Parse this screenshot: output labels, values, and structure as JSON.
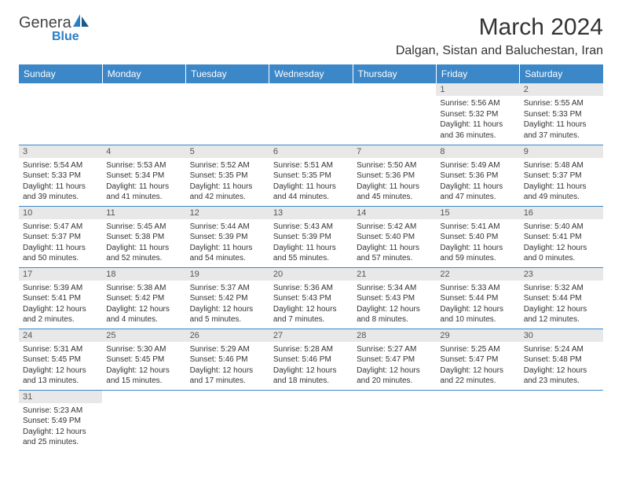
{
  "logo": {
    "text1": "Genera",
    "text2": "Blue"
  },
  "title": "March 2024",
  "location": "Dalgan, Sistan and Baluchestan, Iran",
  "colors": {
    "header_bg": "#3b87c8",
    "header_text": "#ffffff",
    "daynum_bg": "#e8e8e8",
    "row_border": "#3b87c8"
  },
  "weekdays": [
    "Sunday",
    "Monday",
    "Tuesday",
    "Wednesday",
    "Thursday",
    "Friday",
    "Saturday"
  ],
  "weeks": [
    [
      {
        "empty": true
      },
      {
        "empty": true
      },
      {
        "empty": true
      },
      {
        "empty": true
      },
      {
        "empty": true
      },
      {
        "n": "1",
        "sr": "Sunrise: 5:56 AM",
        "ss": "Sunset: 5:32 PM",
        "dl": "Daylight: 11 hours and 36 minutes."
      },
      {
        "n": "2",
        "sr": "Sunrise: 5:55 AM",
        "ss": "Sunset: 5:33 PM",
        "dl": "Daylight: 11 hours and 37 minutes."
      }
    ],
    [
      {
        "n": "3",
        "sr": "Sunrise: 5:54 AM",
        "ss": "Sunset: 5:33 PM",
        "dl": "Daylight: 11 hours and 39 minutes."
      },
      {
        "n": "4",
        "sr": "Sunrise: 5:53 AM",
        "ss": "Sunset: 5:34 PM",
        "dl": "Daylight: 11 hours and 41 minutes."
      },
      {
        "n": "5",
        "sr": "Sunrise: 5:52 AM",
        "ss": "Sunset: 5:35 PM",
        "dl": "Daylight: 11 hours and 42 minutes."
      },
      {
        "n": "6",
        "sr": "Sunrise: 5:51 AM",
        "ss": "Sunset: 5:35 PM",
        "dl": "Daylight: 11 hours and 44 minutes."
      },
      {
        "n": "7",
        "sr": "Sunrise: 5:50 AM",
        "ss": "Sunset: 5:36 PM",
        "dl": "Daylight: 11 hours and 45 minutes."
      },
      {
        "n": "8",
        "sr": "Sunrise: 5:49 AM",
        "ss": "Sunset: 5:36 PM",
        "dl": "Daylight: 11 hours and 47 minutes."
      },
      {
        "n": "9",
        "sr": "Sunrise: 5:48 AM",
        "ss": "Sunset: 5:37 PM",
        "dl": "Daylight: 11 hours and 49 minutes."
      }
    ],
    [
      {
        "n": "10",
        "sr": "Sunrise: 5:47 AM",
        "ss": "Sunset: 5:37 PM",
        "dl": "Daylight: 11 hours and 50 minutes."
      },
      {
        "n": "11",
        "sr": "Sunrise: 5:45 AM",
        "ss": "Sunset: 5:38 PM",
        "dl": "Daylight: 11 hours and 52 minutes."
      },
      {
        "n": "12",
        "sr": "Sunrise: 5:44 AM",
        "ss": "Sunset: 5:39 PM",
        "dl": "Daylight: 11 hours and 54 minutes."
      },
      {
        "n": "13",
        "sr": "Sunrise: 5:43 AM",
        "ss": "Sunset: 5:39 PM",
        "dl": "Daylight: 11 hours and 55 minutes."
      },
      {
        "n": "14",
        "sr": "Sunrise: 5:42 AM",
        "ss": "Sunset: 5:40 PM",
        "dl": "Daylight: 11 hours and 57 minutes."
      },
      {
        "n": "15",
        "sr": "Sunrise: 5:41 AM",
        "ss": "Sunset: 5:40 PM",
        "dl": "Daylight: 11 hours and 59 minutes."
      },
      {
        "n": "16",
        "sr": "Sunrise: 5:40 AM",
        "ss": "Sunset: 5:41 PM",
        "dl": "Daylight: 12 hours and 0 minutes."
      }
    ],
    [
      {
        "n": "17",
        "sr": "Sunrise: 5:39 AM",
        "ss": "Sunset: 5:41 PM",
        "dl": "Daylight: 12 hours and 2 minutes."
      },
      {
        "n": "18",
        "sr": "Sunrise: 5:38 AM",
        "ss": "Sunset: 5:42 PM",
        "dl": "Daylight: 12 hours and 4 minutes."
      },
      {
        "n": "19",
        "sr": "Sunrise: 5:37 AM",
        "ss": "Sunset: 5:42 PM",
        "dl": "Daylight: 12 hours and 5 minutes."
      },
      {
        "n": "20",
        "sr": "Sunrise: 5:36 AM",
        "ss": "Sunset: 5:43 PM",
        "dl": "Daylight: 12 hours and 7 minutes."
      },
      {
        "n": "21",
        "sr": "Sunrise: 5:34 AM",
        "ss": "Sunset: 5:43 PM",
        "dl": "Daylight: 12 hours and 8 minutes."
      },
      {
        "n": "22",
        "sr": "Sunrise: 5:33 AM",
        "ss": "Sunset: 5:44 PM",
        "dl": "Daylight: 12 hours and 10 minutes."
      },
      {
        "n": "23",
        "sr": "Sunrise: 5:32 AM",
        "ss": "Sunset: 5:44 PM",
        "dl": "Daylight: 12 hours and 12 minutes."
      }
    ],
    [
      {
        "n": "24",
        "sr": "Sunrise: 5:31 AM",
        "ss": "Sunset: 5:45 PM",
        "dl": "Daylight: 12 hours and 13 minutes."
      },
      {
        "n": "25",
        "sr": "Sunrise: 5:30 AM",
        "ss": "Sunset: 5:45 PM",
        "dl": "Daylight: 12 hours and 15 minutes."
      },
      {
        "n": "26",
        "sr": "Sunrise: 5:29 AM",
        "ss": "Sunset: 5:46 PM",
        "dl": "Daylight: 12 hours and 17 minutes."
      },
      {
        "n": "27",
        "sr": "Sunrise: 5:28 AM",
        "ss": "Sunset: 5:46 PM",
        "dl": "Daylight: 12 hours and 18 minutes."
      },
      {
        "n": "28",
        "sr": "Sunrise: 5:27 AM",
        "ss": "Sunset: 5:47 PM",
        "dl": "Daylight: 12 hours and 20 minutes."
      },
      {
        "n": "29",
        "sr": "Sunrise: 5:25 AM",
        "ss": "Sunset: 5:47 PM",
        "dl": "Daylight: 12 hours and 22 minutes."
      },
      {
        "n": "30",
        "sr": "Sunrise: 5:24 AM",
        "ss": "Sunset: 5:48 PM",
        "dl": "Daylight: 12 hours and 23 minutes."
      }
    ],
    [
      {
        "n": "31",
        "sr": "Sunrise: 5:23 AM",
        "ss": "Sunset: 5:49 PM",
        "dl": "Daylight: 12 hours and 25 minutes."
      },
      {
        "empty": true
      },
      {
        "empty": true
      },
      {
        "empty": true
      },
      {
        "empty": true
      },
      {
        "empty": true
      },
      {
        "empty": true
      }
    ]
  ]
}
